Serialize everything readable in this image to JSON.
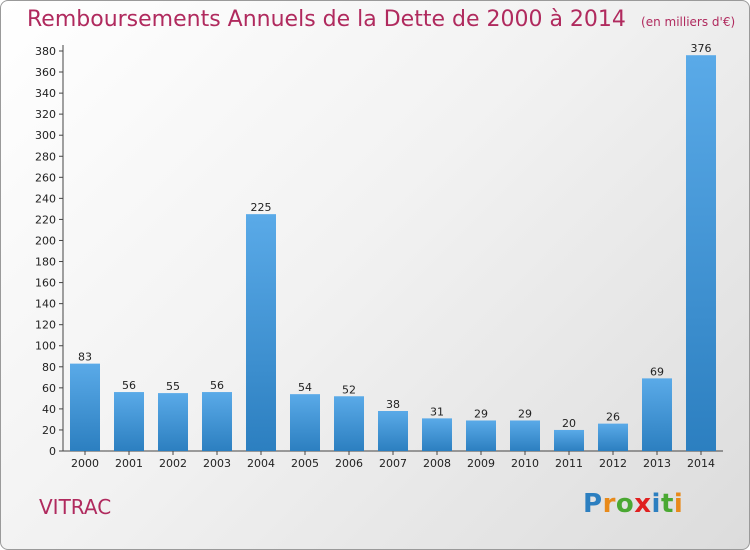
{
  "chart_data": {
    "type": "bar",
    "title": "Remboursements Annuels de la Dette de 2000 à 2014",
    "subtitle": "(en milliers d'€)",
    "categories": [
      "2000",
      "2001",
      "2002",
      "2003",
      "2004",
      "2005",
      "2006",
      "2007",
      "2008",
      "2009",
      "2010",
      "2011",
      "2012",
      "2013",
      "2014"
    ],
    "values": [
      83,
      56,
      55,
      56,
      225,
      54,
      52,
      38,
      31,
      29,
      29,
      20,
      26,
      69,
      376
    ],
    "ylim": [
      0,
      380
    ],
    "ytick_step": 20,
    "grid": false,
    "bar_color_light": "#5aaae8",
    "bar_color_dark": "#2c7fc0"
  },
  "place": "VITRAC",
  "logo": {
    "letters": [
      "P",
      "r",
      "o",
      "x",
      "i",
      "t",
      "i"
    ],
    "colors": [
      "#2c7fc0",
      "#e88a1a",
      "#4aa832",
      "#e02020",
      "#2c7fc0",
      "#4aa832",
      "#e88a1a"
    ]
  }
}
